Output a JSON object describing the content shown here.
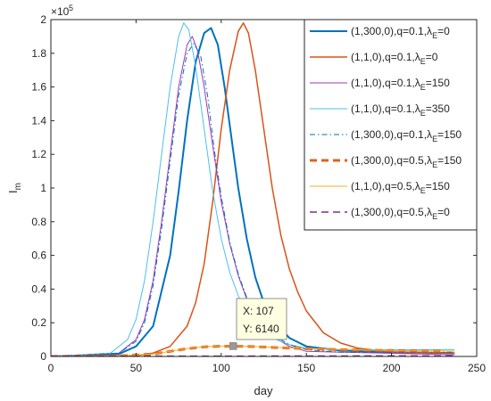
{
  "chart_data": {
    "type": "line",
    "title": "",
    "xlabel": "day",
    "ylabel": "I",
    "ylabel_sub": "m",
    "xlim": [
      0,
      250
    ],
    "ylim": [
      0,
      200000
    ],
    "x_ticks": [
      0,
      50,
      100,
      150,
      200,
      250
    ],
    "y_ticks": [
      0,
      20000,
      40000,
      60000,
      80000,
      100000,
      120000,
      140000,
      160000,
      180000,
      200000
    ],
    "y_tick_labels": [
      "0",
      "0.2",
      "0.4",
      "0.6",
      "0.8",
      "1",
      "1.2",
      "1.4",
      "1.6",
      "1.8",
      "2"
    ],
    "y_exponent_base": "×10",
    "y_exponent": "5",
    "grid": false,
    "legend_position": "top-right",
    "series": [
      {
        "legend_prefix": "(1,300,0),q=0.1,λ",
        "legend_sub": "E",
        "legend_suffix": "=0",
        "color": "#0072BD",
        "dash": "solid",
        "width": 2,
        "x": [
          0,
          40,
          50,
          60,
          70,
          75,
          80,
          85,
          90,
          94,
          98,
          102,
          106,
          110,
          115,
          120,
          125,
          130,
          140,
          150,
          170,
          200,
          237
        ],
        "y": [
          0,
          1500,
          6000,
          18000,
          60000,
          98000,
          140000,
          175000,
          192000,
          195000,
          185000,
          160000,
          130000,
          100000,
          70000,
          47000,
          32000,
          22000,
          11000,
          6000,
          3500,
          2500,
          2000
        ]
      },
      {
        "legend_prefix": "(1,1,0),q=0.1,λ",
        "legend_sub": "E",
        "legend_suffix": "=0",
        "color": "#D95319",
        "dash": "solid",
        "width": 1.5,
        "x": [
          0,
          50,
          60,
          70,
          80,
          85,
          90,
          95,
          100,
          105,
          110,
          113,
          116,
          120,
          125,
          130,
          135,
          140,
          145,
          150,
          160,
          170,
          180,
          200,
          237
        ],
        "y": [
          0,
          500,
          2000,
          6000,
          18000,
          32000,
          55000,
          92000,
          135000,
          170000,
          193000,
          198000,
          192000,
          170000,
          135000,
          100000,
          72000,
          52000,
          38000,
          27000,
          14000,
          8000,
          5000,
          2500,
          2000
        ]
      },
      {
        "legend_prefix": "(1,1,0),q=0.1,λ",
        "legend_sub": "E",
        "legend_suffix": "=150",
        "color": "#A335B8",
        "dash": "solid",
        "width": 1,
        "x": [
          0,
          40,
          50,
          55,
          60,
          65,
          70,
          75,
          80,
          83,
          86,
          90,
          95,
          100,
          105,
          110,
          115,
          120,
          130,
          140,
          150,
          237
        ],
        "y": [
          0,
          2000,
          10000,
          22000,
          45000,
          80000,
          120000,
          160000,
          185000,
          190000,
          182000,
          160000,
          125000,
          92000,
          67000,
          48000,
          34000,
          24000,
          12000,
          6000,
          3000,
          1000
        ]
      },
      {
        "legend_prefix": "(1,1,0),q=0.1,λ",
        "legend_sub": "E",
        "legend_suffix": "=350",
        "color": "#4DBEEE",
        "dash": "solid",
        "width": 1,
        "x": [
          0,
          35,
          45,
          50,
          55,
          60,
          65,
          70,
          75,
          78,
          81,
          85,
          90,
          95,
          100,
          105,
          110,
          115,
          120,
          130,
          140,
          150,
          170,
          200,
          237
        ],
        "y": [
          0,
          2000,
          10000,
          22000,
          45000,
          80000,
          120000,
          160000,
          190000,
          198000,
          194000,
          172000,
          135000,
          98000,
          70000,
          50000,
          36000,
          26000,
          19000,
          11000,
          7000,
          5000,
          4000,
          4000,
          4000
        ]
      },
      {
        "legend_prefix": "(1,300,0),q=0.1,λ",
        "legend_sub": "E",
        "legend_suffix": "=150",
        "color": "#0072BD",
        "dash": "dashdot",
        "width": 1,
        "x": [
          0,
          40,
          50,
          55,
          60,
          65,
          70,
          75,
          80,
          84,
          88,
          92,
          96,
          100,
          105,
          110,
          115,
          120,
          130,
          140,
          150,
          170,
          200,
          237
        ],
        "y": [
          0,
          2000,
          9000,
          20000,
          42000,
          76000,
          116000,
          155000,
          180000,
          186000,
          178000,
          155000,
          122000,
          95000,
          68000,
          49000,
          35000,
          25000,
          13000,
          7000,
          4000,
          2500,
          2500,
          2500
        ]
      },
      {
        "legend_prefix": "(1,300,0),q=0.5,λ",
        "legend_sub": "E",
        "legend_suffix": "=150",
        "color": "#E0621E",
        "dash": "dashed",
        "width": 3,
        "x": [
          0,
          40,
          60,
          70,
          80,
          90,
          100,
          107,
          115,
          125,
          140,
          160,
          180,
          200,
          230
        ],
        "y": [
          0,
          300,
          1500,
          3000,
          4600,
          5700,
          6100,
          6140,
          6000,
          5600,
          5000,
          4300,
          3800,
          3500,
          3200
        ]
      },
      {
        "legend_prefix": "(1,1,0),q=0.5,λ",
        "legend_sub": "E",
        "legend_suffix": "=150",
        "color": "#EDB120",
        "dash": "solid",
        "width": 1,
        "x": [
          0,
          40,
          60,
          70,
          80,
          90,
          100,
          107,
          115,
          125,
          140,
          160,
          180,
          200,
          237
        ],
        "y": [
          0,
          300,
          1500,
          3000,
          4700,
          5800,
          6200,
          6200,
          6100,
          5700,
          5100,
          4400,
          3900,
          3500,
          3200
        ]
      },
      {
        "legend_prefix": "(1,300,0),q=0.5,λ",
        "legend_sub": "E",
        "legend_suffix": "=0",
        "color": "#7E2F8E",
        "dash": "dashed",
        "width": 1.5,
        "x": [
          0,
          50,
          100,
          150,
          200,
          237
        ],
        "y": [
          100,
          150,
          200,
          250,
          300,
          300
        ]
      }
    ],
    "annotation": {
      "x_text": "X: 107",
      "y_text": "Y: 6140",
      "point": [
        107,
        6140
      ]
    }
  }
}
